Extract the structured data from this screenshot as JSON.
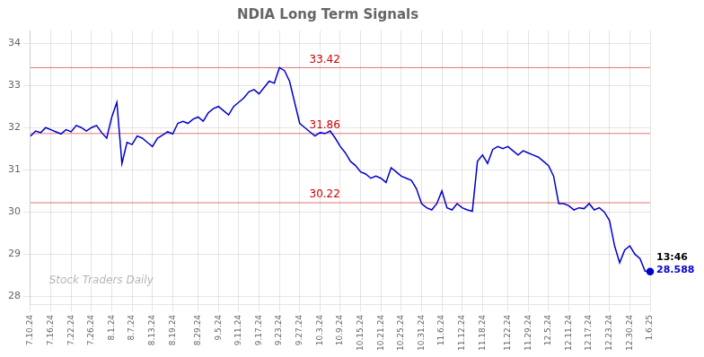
{
  "chart_data": {
    "type": "line",
    "title": "NDIA Long Term Signals",
    "categories": [
      "7.10.24",
      null,
      null,
      null,
      "7.16.24",
      null,
      null,
      null,
      "7.22.24",
      null,
      null,
      null,
      "7.26.24",
      null,
      null,
      null,
      "8.1.24",
      null,
      null,
      null,
      "8.7.24",
      null,
      null,
      null,
      "8.13.24",
      null,
      null,
      null,
      "8.19.24",
      null,
      null,
      null,
      null,
      "8.29.24",
      null,
      null,
      null,
      "9.5.24",
      null,
      null,
      null,
      "9.11.24",
      null,
      null,
      null,
      "9.17.24",
      null,
      null,
      null,
      "9.23.24",
      null,
      null,
      null,
      "9.27.24",
      null,
      null,
      null,
      "10.3.24",
      null,
      null,
      null,
      "10.9.24",
      null,
      null,
      null,
      "10.15.24",
      null,
      null,
      null,
      "10.21.24",
      null,
      null,
      null,
      "10.25.24",
      null,
      null,
      null,
      "10.31.24",
      null,
      null,
      null,
      "11.6.24",
      null,
      null,
      null,
      "11.12.24",
      null,
      null,
      null,
      "11.18.24",
      null,
      null,
      null,
      null,
      "11.22.24",
      null,
      null,
      null,
      "11.29.24",
      null,
      null,
      null,
      "12.5.24",
      null,
      null,
      null,
      "12.11.24",
      null,
      null,
      null,
      "12.17.24",
      null,
      null,
      null,
      "12.23.24",
      null,
      null,
      null,
      "12.30.24",
      null,
      null,
      null,
      "1.6.25"
    ],
    "values": [
      31.8,
      31.92,
      31.88,
      32.0,
      31.95,
      31.9,
      31.85,
      31.95,
      31.9,
      32.05,
      32.0,
      31.92,
      32.0,
      32.05,
      31.88,
      31.75,
      32.25,
      32.6,
      31.15,
      31.65,
      31.6,
      31.8,
      31.75,
      31.65,
      31.55,
      31.75,
      31.82,
      31.9,
      31.85,
      32.1,
      32.15,
      32.1,
      32.2,
      32.25,
      32.15,
      32.35,
      32.45,
      32.5,
      32.4,
      32.3,
      32.5,
      32.6,
      32.7,
      32.85,
      32.9,
      32.8,
      32.95,
      33.1,
      33.05,
      33.42,
      33.35,
      33.1,
      32.6,
      32.1,
      32.0,
      31.9,
      31.8,
      31.88,
      31.86,
      31.92,
      31.75,
      31.55,
      31.4,
      31.2,
      31.1,
      30.95,
      30.9,
      30.8,
      30.85,
      30.8,
      30.7,
      31.05,
      30.95,
      30.85,
      30.8,
      30.75,
      30.55,
      30.2,
      30.1,
      30.05,
      30.2,
      30.5,
      30.1,
      30.05,
      30.2,
      30.1,
      30.05,
      30.02,
      31.2,
      31.35,
      31.15,
      31.48,
      31.55,
      31.5,
      31.55,
      31.45,
      31.35,
      31.45,
      31.4,
      31.35,
      31.3,
      31.2,
      31.1,
      30.85,
      30.2,
      30.2,
      30.15,
      30.05,
      30.1,
      30.08,
      30.2,
      30.05,
      30.1,
      30.0,
      29.8,
      29.2,
      28.8,
      29.1,
      29.2,
      29.0,
      28.9,
      28.6,
      28.588
    ],
    "color": "#0000cc",
    "data_labels": true,
    "value_labels": [
      null,
      null,
      null,
      null,
      null,
      null,
      null,
      null,
      null,
      null,
      null,
      null,
      null,
      null,
      null,
      null,
      null,
      null,
      null,
      null,
      null,
      null,
      null,
      null,
      null,
      null,
      null,
      null,
      null,
      null,
      null,
      null,
      null,
      null,
      null,
      null,
      null,
      null,
      null,
      null,
      null,
      null,
      null,
      null,
      null,
      null,
      null,
      null,
      null,
      null,
      null,
      null,
      null,
      null,
      null,
      null,
      null,
      null,
      null,
      null,
      null,
      null,
      null,
      null,
      null,
      null,
      null,
      null,
      null,
      null,
      null,
      null,
      null,
      null,
      null,
      null,
      null,
      null,
      null,
      null,
      null,
      null,
      null,
      null,
      null,
      null,
      null,
      null,
      null,
      null,
      null,
      null,
      null,
      null,
      null,
      null,
      null,
      null,
      null,
      null,
      null,
      null,
      null,
      null,
      null,
      null,
      null,
      null,
      null,
      null,
      null,
      null,
      null,
      null,
      null,
      null,
      null,
      null,
      null,
      null,
      null,
      null,
      "28.588"
    ],
    "last_point_label": "13:46",
    "hlines": [
      {
        "value": 33.42,
        "label": "33.42",
        "color": "#cc0000"
      },
      {
        "value": 31.86,
        "label": "31.86",
        "color": "#cc0000"
      },
      {
        "value": 30.22,
        "label": "30.22",
        "color": "#cc0000"
      }
    ],
    "watermark": "Stock Traders Daily",
    "ylim": [
      27.8,
      34.3
    ],
    "yticks": [
      28,
      29,
      30,
      31,
      32,
      33,
      34
    ],
    "grid": true
  }
}
